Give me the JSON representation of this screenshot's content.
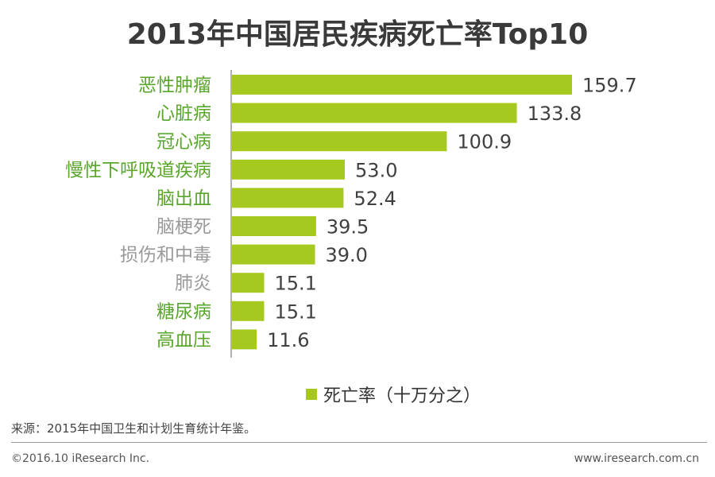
{
  "title": "2013年中国居民疾病死亡率Top10",
  "legend": {
    "label": "死亡率（十万分之）",
    "color": "#a6c920"
  },
  "source": "来源：2015年中国卫生和计划生育统计年鉴。",
  "footer": {
    "copyright": "©2016.10 iResearch Inc.",
    "url": "www.iresearch.com.cn"
  },
  "colors": {
    "bar": "#a6c920",
    "highlight_label": "#5aa62c",
    "muted_label": "#9a9a9a",
    "axis": "#999999"
  },
  "chart_data": {
    "type": "bar",
    "orientation": "horizontal",
    "title": "2013年中国居民疾病死亡率Top10",
    "xlabel": "",
    "ylabel": "",
    "xlim": [
      0,
      165
    ],
    "grid": false,
    "legend_position": "bottom",
    "categories": [
      "恶性肿瘤",
      "心脏病",
      "冠心病",
      "慢性下呼吸道疾病",
      "脑出血",
      "脑梗死",
      "损伤和中毒",
      "肺炎",
      "糖尿病",
      "高血压"
    ],
    "label_styles": [
      "highlight",
      "highlight",
      "highlight",
      "highlight",
      "highlight",
      "muted",
      "muted",
      "muted",
      "highlight",
      "highlight"
    ],
    "series": [
      {
        "name": "死亡率（十万分之）",
        "values": [
          159.7,
          133.8,
          100.9,
          53.0,
          52.4,
          39.5,
          39.0,
          15.1,
          15.1,
          11.6
        ]
      }
    ]
  }
}
